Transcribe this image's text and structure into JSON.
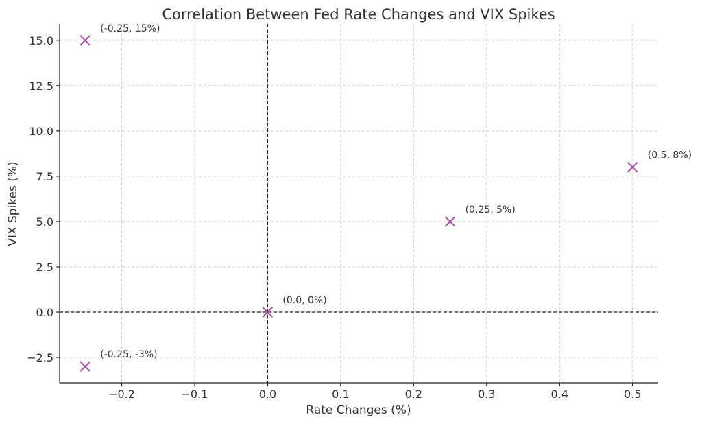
{
  "chart_data": {
    "type": "scatter",
    "title": "Correlation Between Fed Rate Changes and VIX Spikes",
    "xlabel": "Rate Changes (%)",
    "ylabel": "VIX Spikes (%)",
    "xlim": [
      -0.285,
      0.535
    ],
    "ylim": [
      -3.9,
      15.9
    ],
    "grid": true,
    "x_ticks": [
      -0.2,
      -0.1,
      0.0,
      0.1,
      0.2,
      0.3,
      0.4,
      0.5
    ],
    "x_tick_labels": [
      "−0.2",
      "−0.1",
      "0.0",
      "0.1",
      "0.2",
      "0.3",
      "0.4",
      "0.5"
    ],
    "y_ticks": [
      -2.5,
      0.0,
      2.5,
      5.0,
      7.5,
      10.0,
      12.5,
      15.0
    ],
    "y_tick_labels": [
      "−2.5",
      "0.0",
      "2.5",
      "5.0",
      "7.5",
      "10.0",
      "12.5",
      "15.0"
    ],
    "reference_lines": {
      "x": 0,
      "y": 0,
      "style": "dashed"
    },
    "marker": "x",
    "marker_color": "#a64ca6",
    "points": [
      {
        "x": -0.25,
        "y": 15,
        "label": "(-0.25, 15%)"
      },
      {
        "x": -0.25,
        "y": -3,
        "label": "(-0.25, -3%)"
      },
      {
        "x": 0.0,
        "y": 0,
        "label": "(0.0, 0%)"
      },
      {
        "x": 0.25,
        "y": 5,
        "label": "(0.25, 5%)"
      },
      {
        "x": 0.5,
        "y": 8,
        "label": "(0.5, 8%)"
      }
    ]
  }
}
